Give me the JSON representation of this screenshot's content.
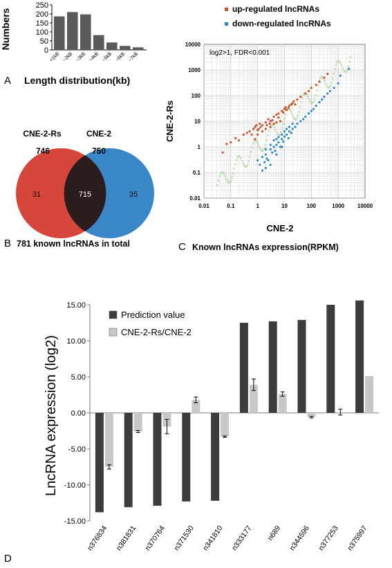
{
  "chart_data": [
    {
      "panel": "A",
      "type": "bar",
      "categories": [
        "<1kB",
        "~2kB",
        "~3kB",
        "~4kB",
        "~5kB",
        "~6kB",
        "~7kB"
      ],
      "values": [
        186,
        210,
        197,
        82,
        41,
        22,
        14
      ],
      "ylabel": "Numbers",
      "yticks": [
        0,
        50,
        100,
        150,
        200,
        250
      ],
      "ylim": [
        0,
        250
      ],
      "caption": "Length distribution(kb)",
      "colors": {
        "bar": "#5a5a5a"
      }
    },
    {
      "panel": "B",
      "type": "venn",
      "sets": [
        {
          "name": "CNE-2-Rs",
          "total": "746",
          "only": "31",
          "color": "#d6463a"
        },
        {
          "name": "CNE-2",
          "total": "750",
          "only": "35",
          "color": "#3a87c8"
        }
      ],
      "intersection": "715",
      "caption": "781 known lncRNAs in total"
    },
    {
      "panel": "C",
      "type": "scatter",
      "xlabel": "CNE-2",
      "ylabel": "CNE-2-Rs",
      "xscale": "log",
      "yscale": "log",
      "xticks": [
        "0.01",
        "0.1",
        "1",
        "10",
        "100",
        "1000",
        "10000"
      ],
      "yticks": [
        "0.01",
        "0.1",
        "1",
        "10",
        "100",
        "1000",
        "10000"
      ],
      "annotation": "log2>1, FDR<0.001",
      "caption": "Known lncRNAs expression(RPKM)",
      "series": [
        {
          "name": "up-regulated lncRNAs",
          "color": "#c8522a",
          "points": [
            [
              0.05,
              0.6
            ],
            [
              0.07,
              1.3
            ],
            [
              0.1,
              1.5
            ],
            [
              0.15,
              2.2
            ],
            [
              0.2,
              1.8
            ],
            [
              0.3,
              3
            ],
            [
              0.4,
              3.5
            ],
            [
              0.5,
              4
            ],
            [
              0.6,
              3
            ],
            [
              0.7,
              5
            ],
            [
              0.8,
              6
            ],
            [
              1,
              4.5
            ],
            [
              1.2,
              8
            ],
            [
              1.5,
              7
            ],
            [
              2,
              9
            ],
            [
              2.5,
              12
            ],
            [
              3,
              10
            ],
            [
              4,
              15
            ],
            [
              5,
              18
            ],
            [
              6,
              14
            ],
            [
              8,
              25
            ],
            [
              10,
              30
            ],
            [
              12,
              28
            ],
            [
              15,
              40
            ],
            [
              20,
              50
            ],
            [
              25,
              45
            ],
            [
              30,
              70
            ],
            [
              40,
              90
            ],
            [
              60,
              120
            ],
            [
              80,
              150
            ],
            [
              100,
              200
            ],
            [
              150,
              260
            ],
            [
              200,
              350
            ],
            [
              300,
              500
            ],
            [
              400,
              700
            ],
            [
              1,
              3
            ],
            [
              1.5,
              4
            ],
            [
              2,
              5
            ],
            [
              3,
              6
            ],
            [
              4,
              8
            ],
            [
              5,
              9
            ],
            [
              7,
              10
            ],
            [
              0.8,
              2
            ],
            [
              0.9,
              7
            ],
            [
              1.1,
              5
            ],
            [
              1.3,
              6
            ],
            [
              2.2,
              7
            ],
            [
              2.8,
              8
            ],
            [
              3.5,
              11
            ],
            [
              6,
              20
            ],
            [
              9,
              22
            ],
            [
              11,
              35
            ],
            [
              14,
              33
            ],
            [
              18,
              45
            ],
            [
              22,
              60
            ]
          ]
        },
        {
          "name": "down-regulated lncRNAs",
          "color": "#2f8ac4",
          "points": [
            [
              1,
              0.3
            ],
            [
              1.2,
              0.2
            ],
            [
              1.5,
              0.4
            ],
            [
              2,
              0.5
            ],
            [
              2.5,
              0.3
            ],
            [
              3,
              0.8
            ],
            [
              3.5,
              0.6
            ],
            [
              4,
              1
            ],
            [
              5,
              1.2
            ],
            [
              6,
              1.5
            ],
            [
              7,
              1
            ],
            [
              8,
              2
            ],
            [
              10,
              2.5
            ],
            [
              12,
              3
            ],
            [
              15,
              4
            ],
            [
              18,
              3.5
            ],
            [
              20,
              5
            ],
            [
              25,
              6
            ],
            [
              30,
              8
            ],
            [
              40,
              10
            ],
            [
              50,
              12
            ],
            [
              60,
              15
            ],
            [
              80,
              20
            ],
            [
              100,
              25
            ],
            [
              120,
              30
            ],
            [
              150,
              40
            ],
            [
              200,
              55
            ],
            [
              250,
              70
            ],
            [
              300,
              90
            ],
            [
              400,
              120
            ],
            [
              500,
              150
            ],
            [
              700,
              200
            ],
            [
              1000,
              300
            ],
            [
              2,
              0.8
            ],
            [
              3,
              1.2
            ],
            [
              4,
              1.8
            ],
            [
              5,
              2
            ],
            [
              6,
              2.4
            ],
            [
              8,
              3
            ],
            [
              10,
              4
            ],
            [
              12,
              5
            ],
            [
              15,
              6
            ],
            [
              20,
              8
            ],
            [
              3,
              0.2
            ],
            [
              2,
              0.15
            ],
            [
              1.5,
              0.12
            ],
            [
              5,
              0.5
            ],
            [
              8,
              1
            ],
            [
              1.8,
              0.25
            ],
            [
              2.2,
              0.35
            ],
            [
              4.5,
              0.7
            ],
            [
              9,
              1.6
            ],
            [
              14,
              2.2
            ],
            [
              1200,
              600
            ],
            [
              2500,
              1100
            ]
          ]
        }
      ]
    },
    {
      "panel": "D",
      "type": "bar",
      "categories": [
        "n376834",
        "n381831",
        "n370764",
        "n371530",
        "n341810",
        "n333177",
        "n689",
        "n344596",
        "n377253",
        "n375997"
      ],
      "ylabel": "LncRNA expression (log2)",
      "ylim": [
        -15,
        15
      ],
      "yticks": [
        "15.00",
        "10.00",
        "5.00",
        "0.00",
        "-5.00",
        "-10.00",
        "-15.00"
      ],
      "series": [
        {
          "name": "Prediction value",
          "color": "#3c3c3c",
          "values": [
            -13.8,
            -13.1,
            -12.9,
            -12.3,
            -12.2,
            12.5,
            12.7,
            12.9,
            15.0,
            15.6
          ]
        },
        {
          "name": "CNE-2-Rs/CNE-2",
          "color": "#c8c8c8",
          "values": [
            -7.5,
            -2.6,
            -1.9,
            1.8,
            -3.3,
            3.9,
            2.6,
            -0.6,
            0.1,
            5.1
          ],
          "errors": [
            0.3,
            0.15,
            1.0,
            0.4,
            0.1,
            0.8,
            0.3,
            0.1,
            0.4,
            0.0
          ]
        }
      ]
    }
  ],
  "panel_labels": [
    "A",
    "B",
    "C",
    "D"
  ]
}
